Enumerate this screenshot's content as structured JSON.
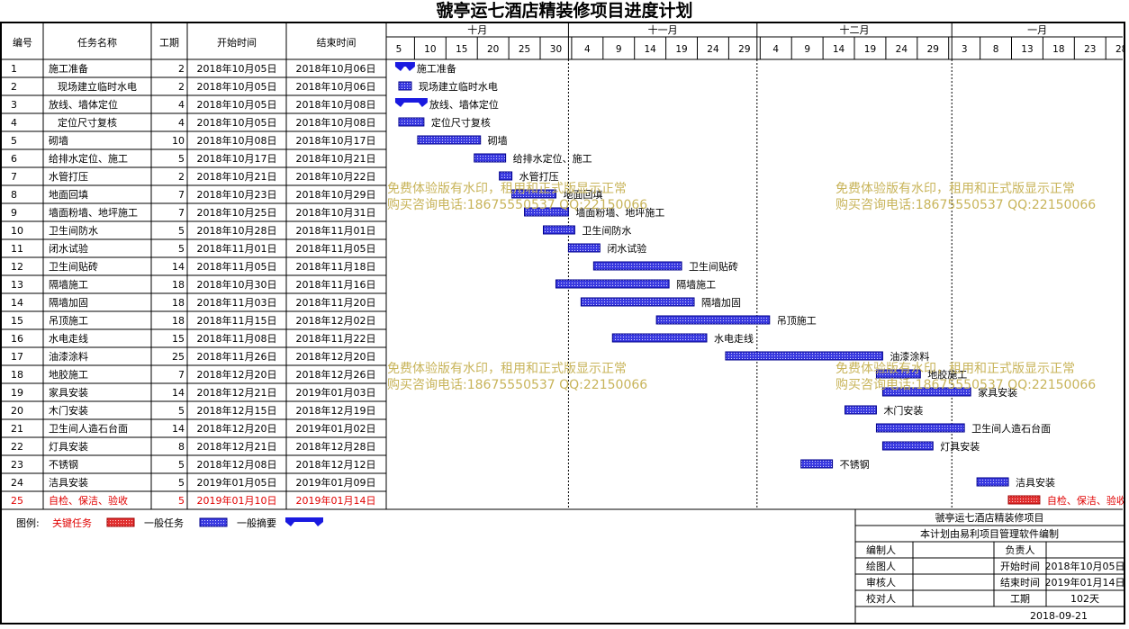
{
  "title": "虢亭运七酒店精装修项目进度计划",
  "columns": [
    "编号",
    "任务名称",
    "工期",
    "开始时间",
    "结束时间"
  ],
  "months": [
    "十月",
    "十一月",
    "十二月",
    "一月"
  ],
  "day_ticks": [
    "5",
    "10",
    "15",
    "20",
    "25",
    "30",
    "4",
    "9",
    "14",
    "19",
    "24",
    "29",
    "4",
    "9",
    "14",
    "19",
    "24",
    "29",
    "3",
    "8",
    "13",
    "18",
    "23",
    "28"
  ],
  "watermark": {
    "line1": "免费体验版有水印，租用和正式版显示正常",
    "line2": "购买咨询电话:18675550537 QQ:22150066"
  },
  "legend": {
    "label": "图例:",
    "critical": "关键任务",
    "normal": "一般任务",
    "summary": "一般摘要",
    "colors": {
      "critical": "#e03030",
      "normal": "#3a3ae0",
      "summary": "#1a1ae0",
      "critical_text": "#e00000"
    }
  },
  "info_box": {
    "project": "虢亭运七酒店精装修项目",
    "note": "本计划由易利项目管理软件编制",
    "rows": [
      [
        "编制人",
        "",
        "负责人",
        ""
      ],
      [
        "绘图人",
        "",
        "开始时间",
        "2018年10月05日"
      ],
      [
        "审核人",
        "",
        "结束时间",
        "2019年01月14日"
      ],
      [
        "校对人",
        "",
        "工期",
        "102天"
      ]
    ],
    "date": "2018-09-21"
  },
  "chart_data": {
    "type": "gantt",
    "title": "虢亭运七酒店精装修项目进度计划",
    "axis_start": "2018-10-03",
    "axis_end": "2019-01-28",
    "tasks": [
      {
        "id": "1",
        "name": "施工准备",
        "duration": 2,
        "start": "2018年10月05日",
        "end": "2018年10月06日",
        "kind": "summary"
      },
      {
        "id": "2",
        "name": "现场建立临时水电",
        "duration": 2,
        "start": "2018年10月05日",
        "end": "2018年10月06日",
        "kind": "normal",
        "indent": true
      },
      {
        "id": "3",
        "name": "放线、墙体定位",
        "duration": 4,
        "start": "2018年10月05日",
        "end": "2018年10月08日",
        "kind": "summary"
      },
      {
        "id": "4",
        "name": "定位尺寸复核",
        "duration": 4,
        "start": "2018年10月05日",
        "end": "2018年10月08日",
        "kind": "normal",
        "indent": true
      },
      {
        "id": "5",
        "name": "砌墙",
        "duration": 10,
        "start": "2018年10月08日",
        "end": "2018年10月17日",
        "kind": "normal"
      },
      {
        "id": "6",
        "name": "给排水定位、施工",
        "duration": 5,
        "start": "2018年10月17日",
        "end": "2018年10月21日",
        "kind": "normal"
      },
      {
        "id": "7",
        "name": "水管打压",
        "duration": 2,
        "start": "2018年10月21日",
        "end": "2018年10月22日",
        "kind": "normal"
      },
      {
        "id": "8",
        "name": "地面回填",
        "duration": 7,
        "start": "2018年10月23日",
        "end": "2018年10月29日",
        "kind": "normal"
      },
      {
        "id": "9",
        "name": "墙面粉墙、地坪施工",
        "duration": 7,
        "start": "2018年10月25日",
        "end": "2018年10月31日",
        "kind": "normal"
      },
      {
        "id": "10",
        "name": "卫生间防水",
        "duration": 5,
        "start": "2018年10月28日",
        "end": "2018年11月01日",
        "kind": "normal"
      },
      {
        "id": "11",
        "name": "闭水试验",
        "duration": 5,
        "start": "2018年11月01日",
        "end": "2018年11月05日",
        "kind": "normal"
      },
      {
        "id": "12",
        "name": "卫生间贴砖",
        "duration": 14,
        "start": "2018年11月05日",
        "end": "2018年11月18日",
        "kind": "normal"
      },
      {
        "id": "13",
        "name": "隔墙施工",
        "duration": 18,
        "start": "2018年10月30日",
        "end": "2018年11月16日",
        "kind": "normal"
      },
      {
        "id": "14",
        "name": "隔墙加固",
        "duration": 18,
        "start": "2018年11月03日",
        "end": "2018年11月20日",
        "kind": "normal"
      },
      {
        "id": "15",
        "name": "吊顶施工",
        "duration": 18,
        "start": "2018年11月15日",
        "end": "2018年12月02日",
        "kind": "normal"
      },
      {
        "id": "16",
        "name": "水电走线",
        "duration": 15,
        "start": "2018年11月08日",
        "end": "2018年11月22日",
        "kind": "normal"
      },
      {
        "id": "17",
        "name": "油漆涂料",
        "duration": 25,
        "start": "2018年11月26日",
        "end": "2018年12月20日",
        "kind": "normal"
      },
      {
        "id": "18",
        "name": "地胶施工",
        "duration": 7,
        "start": "2018年12月20日",
        "end": "2018年12月26日",
        "kind": "normal"
      },
      {
        "id": "19",
        "name": "家具安装",
        "duration": 14,
        "start": "2018年12月21日",
        "end": "2019年01月03日",
        "kind": "normal"
      },
      {
        "id": "20",
        "name": "木门安装",
        "duration": 5,
        "start": "2018年12月15日",
        "end": "2018年12月19日",
        "kind": "normal"
      },
      {
        "id": "21",
        "name": "卫生间人造石台面",
        "duration": 14,
        "start": "2018年12月20日",
        "end": "2019年01月02日",
        "kind": "normal"
      },
      {
        "id": "22",
        "name": "灯具安装",
        "duration": 8,
        "start": "2018年12月21日",
        "end": "2018年12月28日",
        "kind": "normal"
      },
      {
        "id": "23",
        "name": "不锈钢",
        "duration": 5,
        "start": "2018年12月08日",
        "end": "2018年12月12日",
        "kind": "normal"
      },
      {
        "id": "24",
        "name": "洁具安装",
        "duration": 5,
        "start": "2019年01月05日",
        "end": "2019年01月09日",
        "kind": "normal"
      },
      {
        "id": "25",
        "name": "自检、保洁、验收",
        "duration": 5,
        "start": "2019年01月10日",
        "end": "2019年01月14日",
        "kind": "critical"
      }
    ]
  }
}
